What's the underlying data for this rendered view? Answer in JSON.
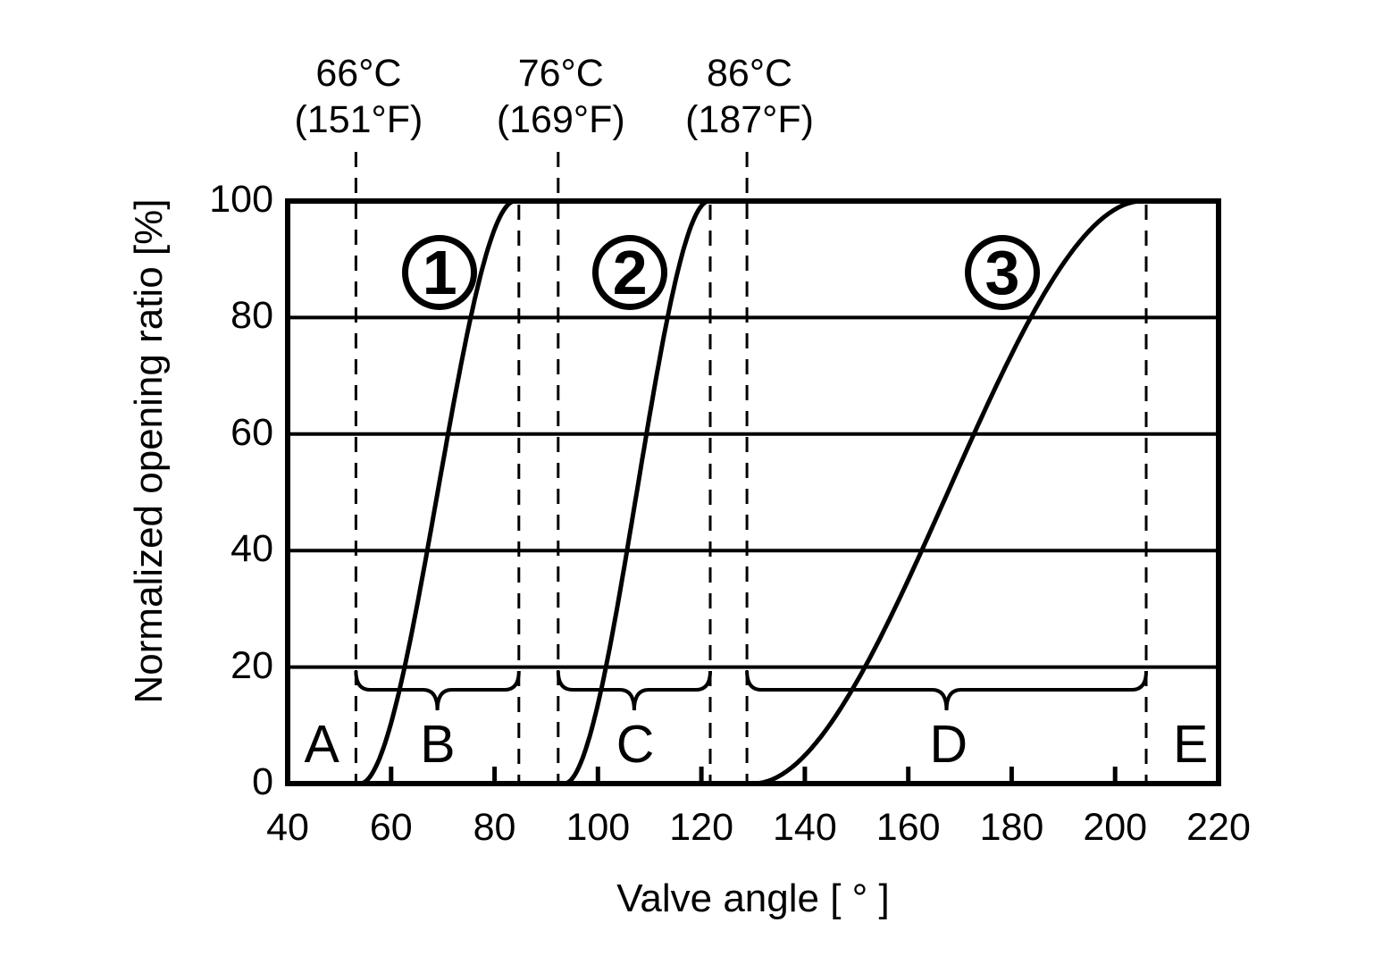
{
  "figure": {
    "background_color": "#ffffff",
    "ink_color": "#000000"
  },
  "chart_data": {
    "type": "line",
    "title": "",
    "xlabel": "Valve angle [ ° ]",
    "ylabel": "Normalized opening ratio [%]",
    "xlim": [
      40,
      220
    ],
    "ylim": [
      0,
      100
    ],
    "grid": "horizontal-only",
    "legend": "none",
    "x_ticks": [
      40,
      60,
      80,
      100,
      120,
      140,
      160,
      180,
      200,
      220
    ],
    "y_ticks": [
      100,
      80,
      60,
      40,
      20,
      0
    ],
    "y_gridlines": [
      20,
      40,
      60,
      80
    ],
    "series": [
      {
        "badge": "1",
        "easing": "smoothstep",
        "start_angle": 54,
        "start_ratio": 0,
        "end_angle": 84,
        "end_ratio": 100,
        "key_points": [
          [
            54,
            0
          ],
          [
            62.6,
            20
          ],
          [
            66.6,
            40
          ],
          [
            71.4,
            60
          ],
          [
            75.4,
            80
          ],
          [
            84,
            100
          ]
        ],
        "badge_center": {
          "angle": 69.4,
          "ratio": 87.7
        }
      },
      {
        "badge": "2",
        "easing": "smoothstep",
        "start_angle": 93.5,
        "start_ratio": 0,
        "end_angle": 121.5,
        "end_ratio": 100,
        "key_points": [
          [
            93.5,
            0
          ],
          [
            101.5,
            20
          ],
          [
            105.3,
            40
          ],
          [
            109.7,
            60
          ],
          [
            113.5,
            80
          ],
          [
            121.5,
            100
          ]
        ],
        "badge_center": {
          "angle": 106.2,
          "ratio": 87.7
        }
      },
      {
        "badge": "3",
        "easing": "smoothstep",
        "start_angle": 130,
        "start_ratio": 0,
        "end_angle": 205.3,
        "end_ratio": 100,
        "key_points": [
          [
            130,
            0
          ],
          [
            151.6,
            20
          ],
          [
            161.7,
            40
          ],
          [
            173.6,
            60
          ],
          [
            183.7,
            80
          ],
          [
            205.3,
            100
          ]
        ],
        "badge_center": {
          "angle": 178.2,
          "ratio": 87.7
        }
      }
    ],
    "temperatures": [
      {
        "celsius": "66°C",
        "fahrenheit": "(151°F)",
        "angle": 53.2
      },
      {
        "celsius": "76°C",
        "fahrenheit": "(169°F)",
        "angle": 92.3
      },
      {
        "celsius": "86°C",
        "fahrenheit": "(187°F)",
        "angle": 128.8
      }
    ],
    "dashed_lines": [
      {
        "angle": 53.2,
        "extends_above_plot": true
      },
      {
        "angle": 84.7,
        "extends_above_plot": false
      },
      {
        "angle": 92.3,
        "extends_above_plot": true
      },
      {
        "angle": 121.7,
        "extends_above_plot": false
      },
      {
        "angle": 128.8,
        "extends_above_plot": true
      },
      {
        "angle": 206.0,
        "extends_above_plot": false
      }
    ],
    "braces": [
      {
        "from_angle": 53.2,
        "to_angle": 84.7,
        "region": "B"
      },
      {
        "from_angle": 92.3,
        "to_angle": 121.7,
        "region": "C"
      },
      {
        "from_angle": 128.8,
        "to_angle": 206.0,
        "region": "D"
      }
    ],
    "regions": [
      {
        "label": "A",
        "center_angle": 46.6
      },
      {
        "label": "B",
        "center_angle": 69.0
      },
      {
        "label": "C",
        "center_angle": 107.2
      },
      {
        "label": "D",
        "center_angle": 167.8
      },
      {
        "label": "E",
        "center_angle": 214.6
      }
    ]
  }
}
